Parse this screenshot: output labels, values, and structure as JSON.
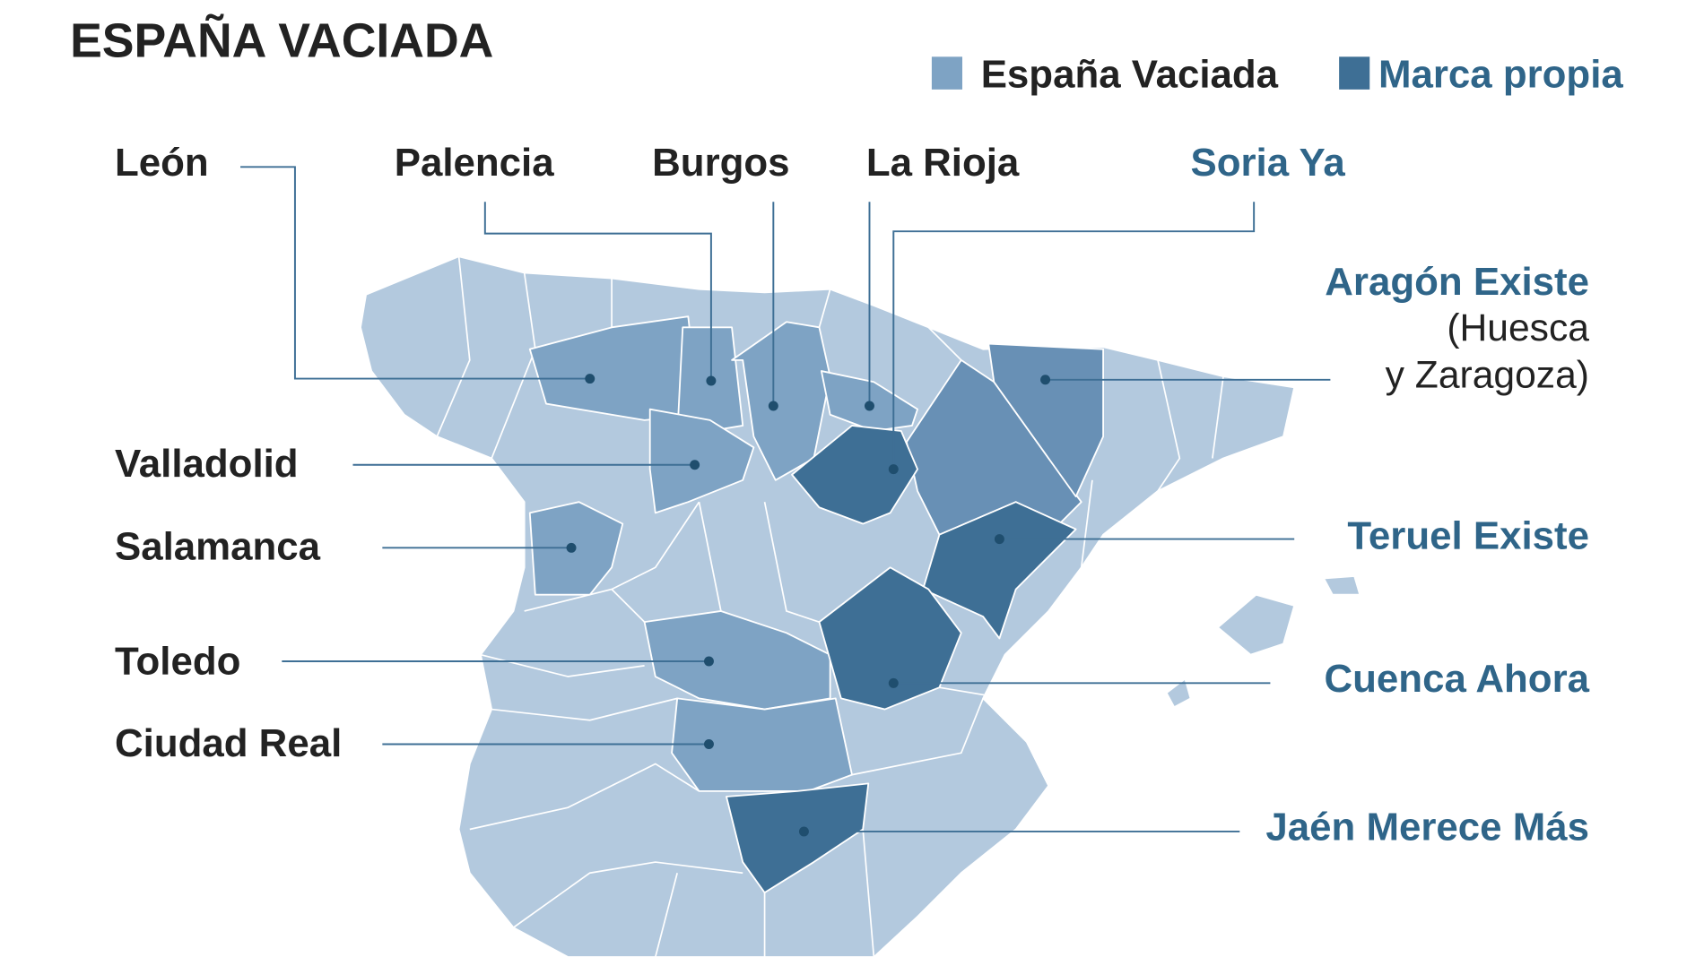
{
  "title": "ESPAÑA VACIADA",
  "legend": [
    {
      "label": "España Vaciada",
      "color": "#7ea3c4"
    },
    {
      "label": "Marca propia",
      "color": "#3e6f95"
    }
  ],
  "colors": {
    "base_province": "#b3c9de",
    "espana_vaciada": "#7ea3c4",
    "marca_propia": "#3e6f95",
    "brand_text": "#2f6589"
  },
  "labels": {
    "leon": "León",
    "palencia": "Palencia",
    "burgos": "Burgos",
    "la_rioja": "La Rioja",
    "soria": "Soria Ya",
    "aragon": "Aragón Existe",
    "aragon_sub1": "(Huesca",
    "aragon_sub2": "y Zaragoza)",
    "valladolid": "Valladolid",
    "salamanca": "Salamanca",
    "teruel": "Teruel Existe",
    "toledo": "Toledo",
    "cuenca": "Cuenca Ahora",
    "ciudad_real": "Ciudad Real",
    "jaen": "Jaén Merece Más"
  }
}
